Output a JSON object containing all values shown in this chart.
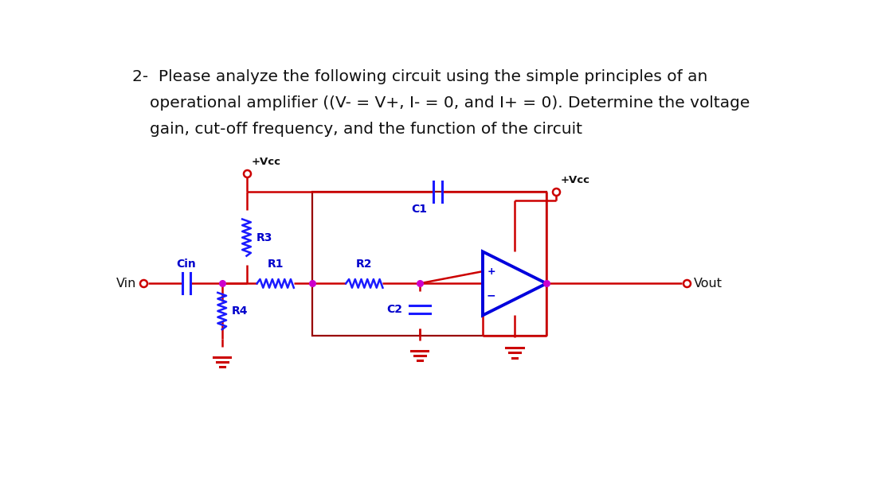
{
  "bg_color": "#ffffff",
  "title_line1": "2-  Please analyze the following circuit using the simple principles of an",
  "title_line2": "operational amplifier ((V- = V+, I- = 0, and I+ = 0). Determine the voltage",
  "title_line3": "gain, cut-off frequency, and the function of the circuit",
  "title_fontsize": 14.5,
  "wire_color": "#cc0000",
  "resistor_color": "#1a1aff",
  "capacitor_color": "#1a1aff",
  "opamp_color": "#0000dd",
  "label_color": "#0000cc",
  "node_color": "#cc00cc",
  "terminal_color_fg": "#ffffff",
  "terminal_color_edge": "#cc0000",
  "ground_color": "#cc0000",
  "vcc_label_color": "#111111",
  "text_color": "#111111"
}
